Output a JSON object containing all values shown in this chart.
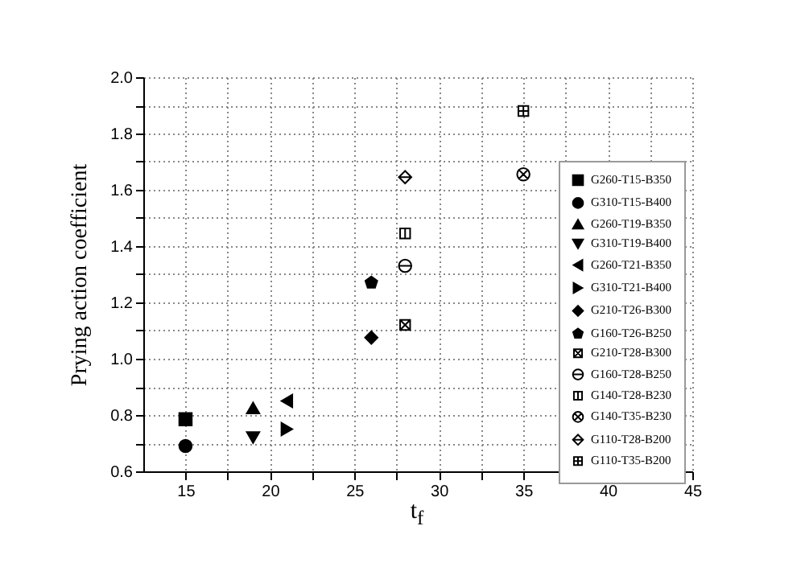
{
  "chart_data": {
    "type": "scatter",
    "xlabel": "t$_{f}$",
    "ylabel": "Prying action coefficient",
    "xlim": [
      12.5,
      45
    ],
    "ylim": [
      0.6,
      2.0
    ],
    "xticks": [
      15,
      {
        "value": 17.5,
        "label": null
      },
      20,
      {
        "value": 22.5,
        "label": null
      },
      25,
      {
        "value": 27.5,
        "label": null
      },
      30,
      {
        "value": 32.5,
        "label": null
      },
      35,
      {
        "value": 37.5,
        "label": null
      },
      40,
      {
        "value": 42.5,
        "label": null
      },
      45
    ],
    "yticks": [
      {
        "value": 0.6,
        "label": "0.6"
      },
      {
        "value": 0.7,
        "label": null
      },
      {
        "value": 0.8,
        "label": "0.8"
      },
      {
        "value": 0.9,
        "label": null
      },
      {
        "value": 1.0,
        "label": "1.0"
      },
      {
        "value": 1.1,
        "label": null
      },
      {
        "value": 1.2,
        "label": "1.2"
      },
      {
        "value": 1.3,
        "label": null
      },
      {
        "value": 1.4,
        "label": "1.4"
      },
      {
        "value": 1.5,
        "label": null
      },
      {
        "value": 1.6,
        "label": "1.6"
      },
      {
        "value": 1.7,
        "label": null
      },
      {
        "value": 1.8,
        "label": "1.8"
      },
      {
        "value": 1.9,
        "label": null
      },
      {
        "value": 2.0,
        "label": "2.0"
      }
    ],
    "grid": true,
    "legend": "right",
    "series": [
      {
        "name": "G260-T15-B350",
        "color": "#000000",
        "x": [
          15
        ],
        "values": [
          0.785
        ]
      },
      {
        "name": "G310-T15-B400",
        "color": "#000000",
        "x": [
          15
        ],
        "values": [
          0.69
        ]
      },
      {
        "name": "G260-T19-B350",
        "color": "#000000",
        "x": [
          19
        ],
        "values": [
          0.825
        ]
      },
      {
        "name": "G310-T19-B400",
        "color": "#000000",
        "x": [
          19
        ],
        "values": [
          0.72
        ]
      },
      {
        "name": "G260-T21-B350",
        "color": "#000000",
        "x": [
          21
        ],
        "values": [
          0.85
        ]
      },
      {
        "name": "G310-T21-B400",
        "color": "#000000",
        "x": [
          21
        ],
        "values": [
          0.75
        ]
      },
      {
        "name": "G210-T26-B300",
        "color": "#000000",
        "x": [
          26
        ],
        "values": [
          1.075
        ]
      },
      {
        "name": "G160-T26-B250",
        "color": "#000000",
        "x": [
          26
        ],
        "values": [
          1.27
        ]
      },
      {
        "name": "G210-T28-B300",
        "color": "#000000",
        "x": [
          28
        ],
        "values": [
          1.12
        ]
      },
      {
        "name": "G160-T28-B250",
        "color": "#000000",
        "x": [
          28
        ],
        "values": [
          1.33
        ]
      },
      {
        "name": "G140-T28-B230",
        "color": "#000000",
        "x": [
          28
        ],
        "values": [
          1.445
        ]
      },
      {
        "name": "G140-T35-B230",
        "color": "#000000",
        "x": [
          35
        ],
        "values": [
          1.655
        ]
      },
      {
        "name": "G110-T28-B200",
        "color": "#000000",
        "x": [
          28
        ],
        "values": [
          1.645
        ]
      },
      {
        "name": "G110-T35-B200",
        "color": "#000000",
        "x": [
          35
        ],
        "values": [
          1.88
        ]
      }
    ]
  }
}
